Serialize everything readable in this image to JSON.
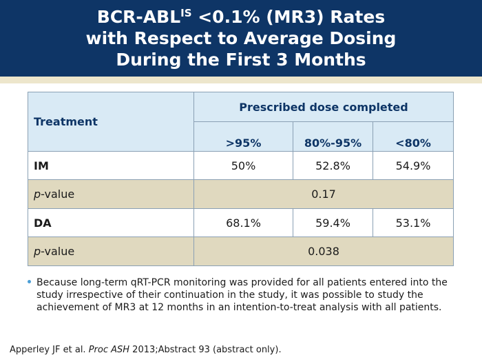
{
  "title": {
    "line1_prefix": "BCR-ABL",
    "line1_sup": "IS",
    "line1_suffix": " <0.1% (MR3) Rates",
    "line2": "with Respect to Average Dosing",
    "line3": "During the First 3 Months"
  },
  "table": {
    "treatment_header": "Treatment",
    "group_header": "Prescribed dose completed",
    "columns": [
      ">95%",
      "80%-95%",
      "<80%"
    ],
    "rows": [
      {
        "type": "data",
        "label": "IM",
        "values": [
          "50%",
          "52.8%",
          "54.9%"
        ]
      },
      {
        "type": "pvalue",
        "label_italic": "p",
        "label_rest": "-value",
        "value": "0.17"
      },
      {
        "type": "data",
        "label": "DA",
        "values": [
          "68.1%",
          "59.4%",
          "53.1%"
        ]
      },
      {
        "type": "pvalue",
        "label_italic": "p",
        "label_rest": "-value",
        "value": "0.038"
      }
    ]
  },
  "bullet": "Because long-term qRT-PCR monitoring was provided for all patients entered into the study irrespective of their continuation in the study, it was possible to study the achievement of MR3 at 12 months in an intention-to-treat analysis with all patients.",
  "citation": {
    "authors": "Apperley JF et al. ",
    "journal": "Proc ASH",
    "rest": " 2013;Abstract 93 (abstract only)."
  },
  "colors": {
    "header_bg": "#0e3566",
    "table_header_bg": "#d9eaf5",
    "row_tan_bg": "#e0d9bf",
    "bullet": "#4a9ed6"
  }
}
